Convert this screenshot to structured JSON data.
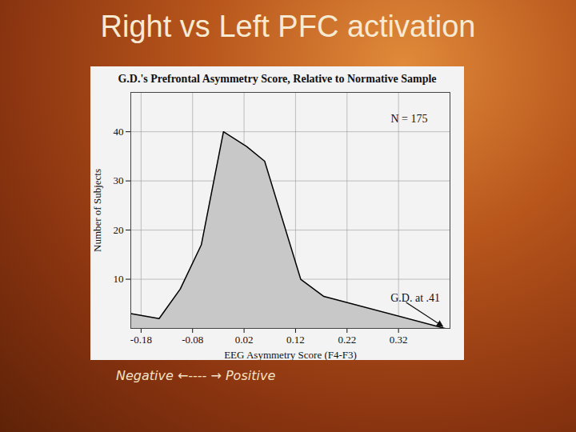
{
  "chart_data": {
    "type": "area",
    "heading": "Right vs Left PFC activation",
    "title": "G.D.'s Prefrontal Asymmetry Score, Relative to Normative Sample",
    "xlabel": "EEG Asymmetry Score (F4-F3)",
    "ylabel": "Number of Subjects",
    "footer": "Negative ←---- → Positive",
    "x": [
      -0.2,
      -0.145,
      -0.104,
      -0.063,
      -0.02,
      0.025,
      0.06,
      0.13,
      0.175,
      0.41
    ],
    "values": [
      3,
      2,
      8,
      17,
      40,
      37,
      34,
      10,
      6.5,
      0
    ],
    "color": "#c8c8c8",
    "xlim": [
      -0.2,
      0.42
    ],
    "xticks": [
      -0.18,
      -0.08,
      0.02,
      0.12,
      0.22,
      0.32
    ],
    "ylim": [
      0,
      48
    ],
    "yticks": [
      10,
      20,
      30,
      40
    ],
    "grid": true,
    "annotations": [
      {
        "text": "N = 175"
      },
      {
        "text": "G.D. at .41",
        "x": 0.41,
        "y": 0
      }
    ]
  }
}
